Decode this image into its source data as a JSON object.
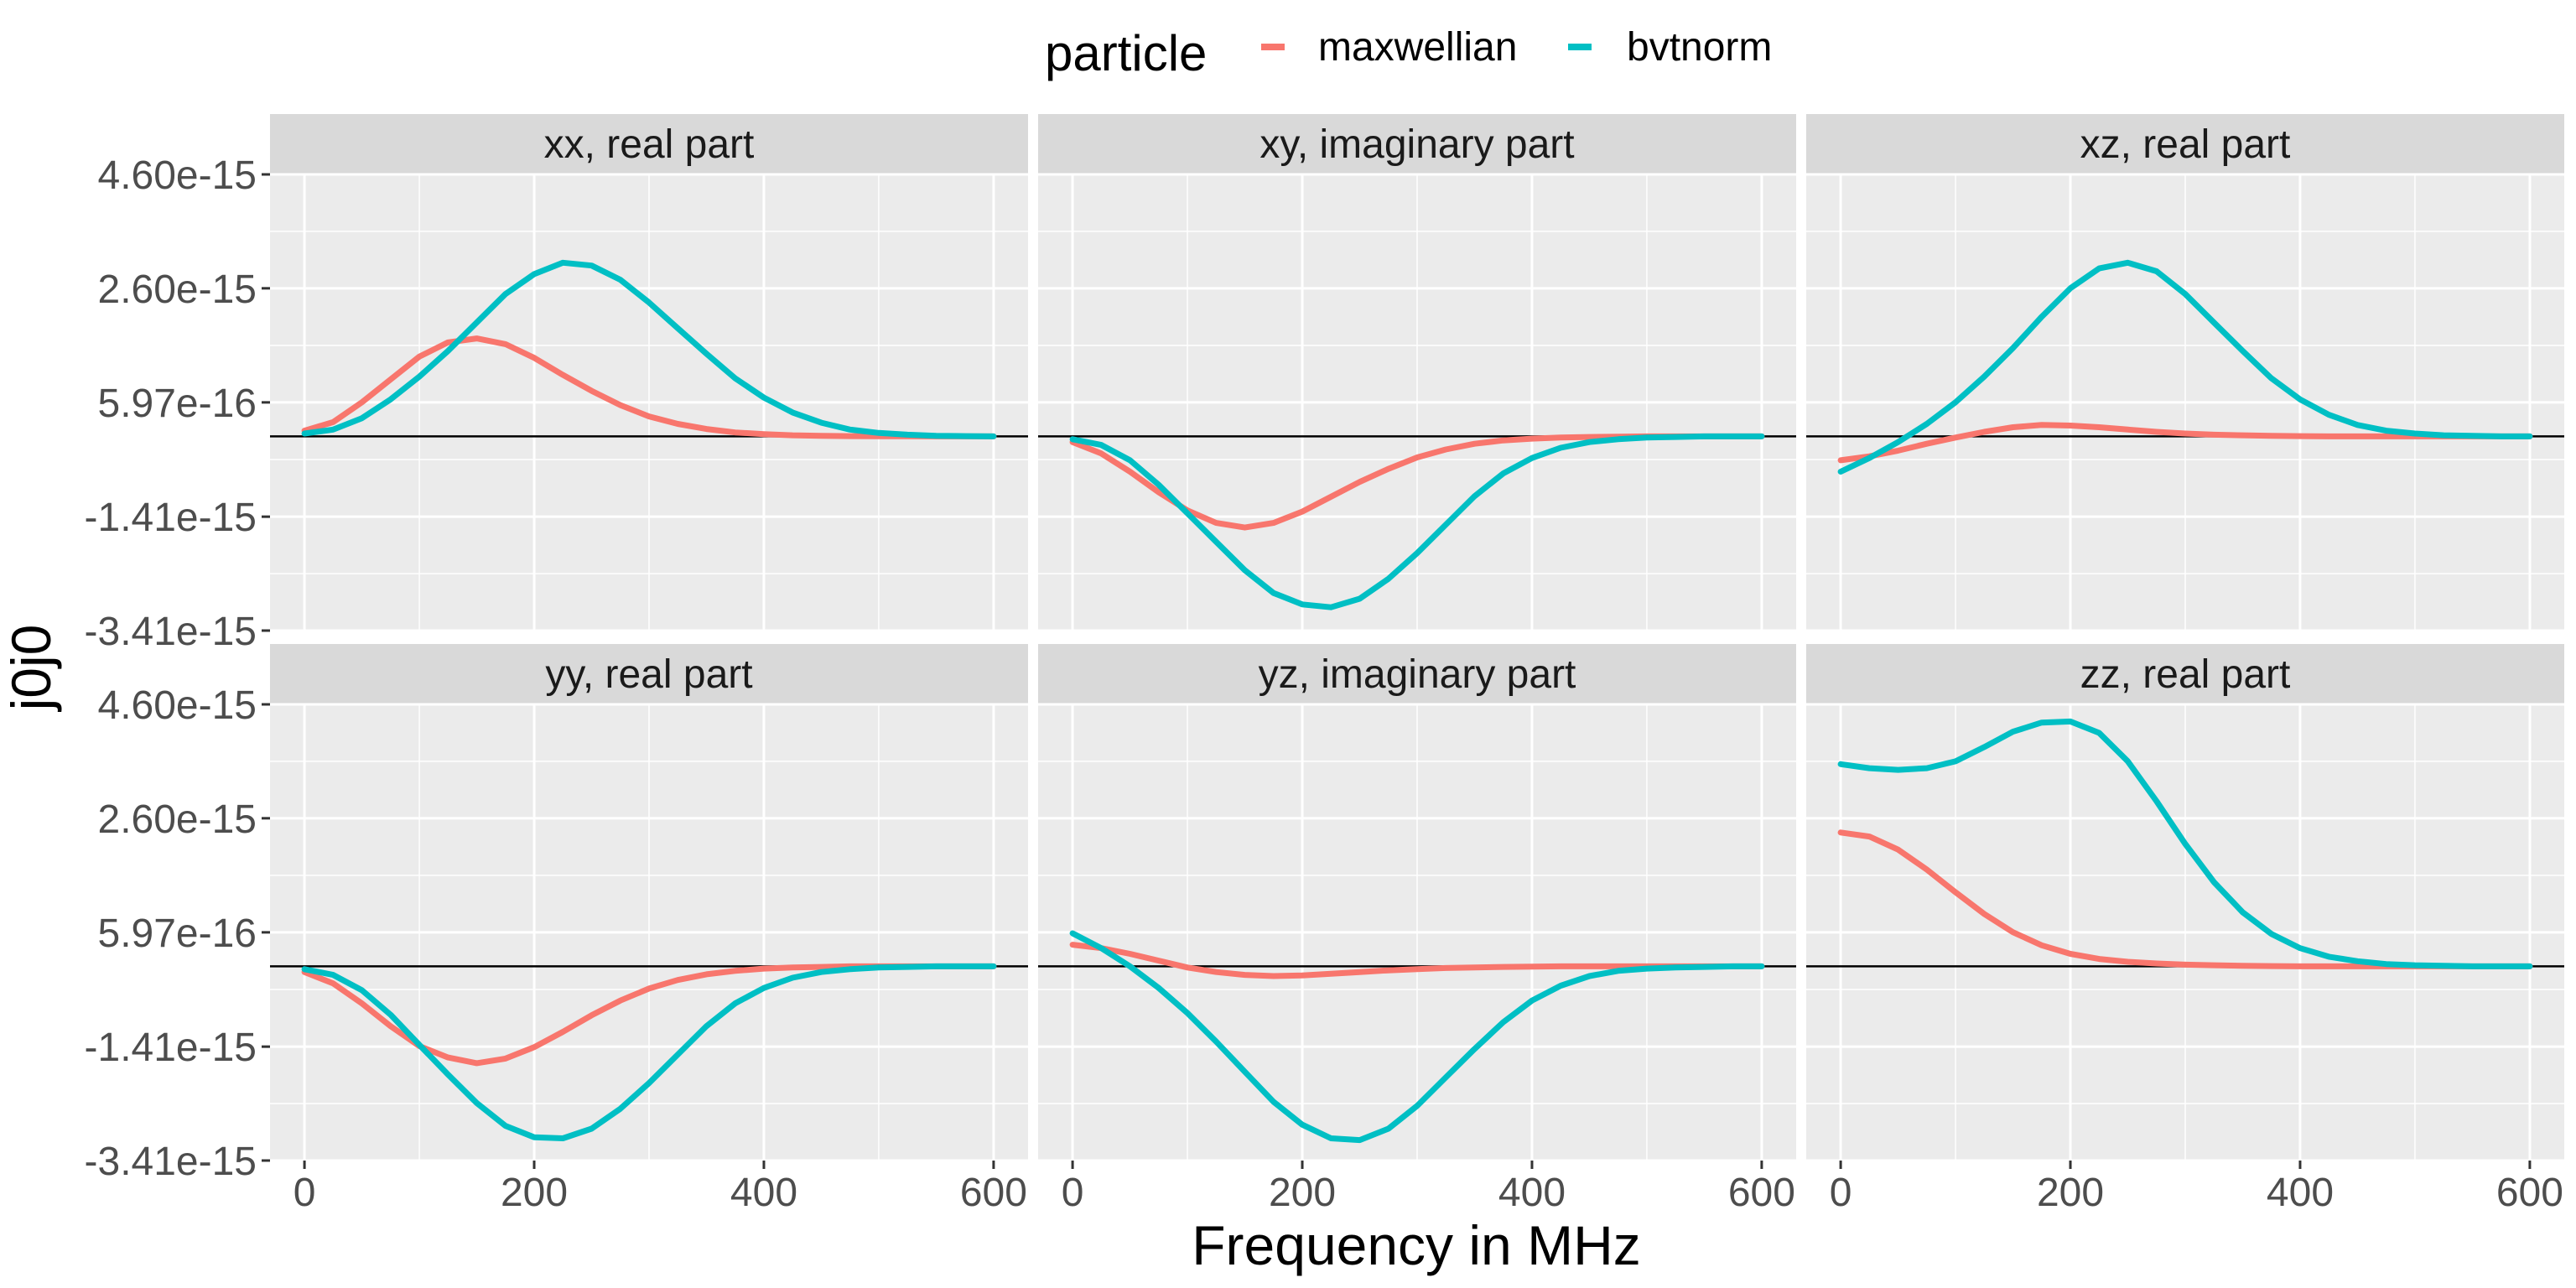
{
  "chart_data": {
    "type": "line",
    "xlabel": "Frequency in MHz",
    "ylabel": "j0j0",
    "legend": {
      "title": "particle",
      "position": "top"
    },
    "x_ticks": [
      0,
      200,
      400,
      600
    ],
    "y_ticks": [
      "4.60e-15",
      "2.60e-15",
      "5.97e-16",
      "-1.41e-15",
      "-3.41e-15"
    ],
    "xlim": [
      -30,
      630
    ],
    "ylim": [
      -3.41e-15,
      4.6e-15
    ],
    "grid": true,
    "series_styles": [
      {
        "name": "maxwellian",
        "color": "#F8766D"
      },
      {
        "name": "bvtnorm",
        "color": "#00BFC4"
      }
    ],
    "x": [
      0,
      25,
      50,
      75,
      100,
      125,
      150,
      175,
      200,
      225,
      250,
      275,
      300,
      325,
      350,
      375,
      400,
      425,
      450,
      475,
      500,
      525,
      550,
      575,
      600
    ],
    "panels": [
      {
        "label": "xx, real part",
        "series": [
          {
            "name": "maxwellian",
            "values": [
              1e-16,
              2.5e-16,
              6e-16,
              1e-15,
              1.4e-15,
              1.65e-15,
              1.72e-15,
              1.62e-15,
              1.38e-15,
              1.08e-15,
              8e-16,
              5.5e-16,
              3.5e-16,
              2.2e-16,
              1.3e-16,
              7e-17,
              4e-17,
              2e-17,
              1e-17,
              5e-18,
              3e-18,
              1e-18,
              0,
              0,
              0
            ]
          },
          {
            "name": "bvtnorm",
            "values": [
              5e-17,
              1.2e-16,
              3.2e-16,
              6.5e-16,
              1.05e-15,
              1.5e-15,
              2e-15,
              2.5e-15,
              2.85e-15,
              3.05e-15,
              3e-15,
              2.75e-15,
              2.35e-15,
              1.9e-15,
              1.45e-15,
              1.02e-15,
              6.8e-16,
              4.2e-16,
              2.4e-16,
              1.2e-16,
              6e-17,
              3e-17,
              1e-17,
              5e-18,
              0
            ]
          }
        ]
      },
      {
        "label": "xy, imaginary part",
        "series": [
          {
            "name": "maxwellian",
            "values": [
              -1e-16,
              -3e-16,
              -6.2e-16,
              -9.8e-16,
              -1.3e-15,
              -1.52e-15,
              -1.6e-15,
              -1.52e-15,
              -1.32e-15,
              -1.06e-15,
              -8e-16,
              -5.7e-16,
              -3.7e-16,
              -2.3e-16,
              -1.3e-16,
              -7e-17,
              -4e-17,
              -2e-17,
              -1e-17,
              -5e-18,
              0,
              0,
              0,
              0,
              0
            ]
          },
          {
            "name": "bvtnorm",
            "values": [
              -5e-17,
              -1.5e-16,
              -4.2e-16,
              -8.5e-16,
              -1.35e-15,
              -1.85e-15,
              -2.35e-15,
              -2.75e-15,
              -2.95e-15,
              -3e-15,
              -2.85e-15,
              -2.5e-15,
              -2.05e-15,
              -1.55e-15,
              -1.05e-15,
              -6.5e-16,
              -3.8e-16,
              -2e-16,
              -1e-16,
              -5e-17,
              -2e-17,
              -1e-17,
              0,
              0,
              0
            ]
          }
        ]
      },
      {
        "label": "xz, real part",
        "series": [
          {
            "name": "maxwellian",
            "values": [
              -4.2e-16,
              -3.5e-16,
              -2.5e-16,
              -1.3e-16,
              -2e-17,
              8e-17,
              1.6e-16,
              2e-16,
              1.9e-16,
              1.6e-16,
              1.2e-16,
              8e-17,
              5e-17,
              3e-17,
              2e-17,
              1e-17,
              5e-18,
              0,
              0,
              0,
              0,
              0,
              0,
              0,
              0
            ]
          },
          {
            "name": "bvtnorm",
            "values": [
              -6.2e-16,
              -3.8e-16,
              -1e-16,
              2.2e-16,
              6e-16,
              1.05e-15,
              1.55e-15,
              2.1e-15,
              2.6e-15,
              2.95e-15,
              3.05e-15,
              2.9e-15,
              2.5e-15,
              2e-15,
              1.5e-15,
              1.02e-15,
              6.5e-16,
              3.8e-16,
              2e-16,
              1e-16,
              5e-17,
              2e-17,
              1e-17,
              0,
              0
            ]
          }
        ]
      },
      {
        "label": "yy, real part",
        "series": [
          {
            "name": "maxwellian",
            "values": [
              -1e-16,
              -3e-16,
              -6.5e-16,
              -1.05e-15,
              -1.4e-15,
              -1.6e-15,
              -1.7e-15,
              -1.62e-15,
              -1.42e-15,
              -1.15e-15,
              -8.6e-16,
              -6e-16,
              -3.9e-16,
              -2.4e-16,
              -1.4e-16,
              -8e-17,
              -4e-17,
              -2e-17,
              -1e-17,
              0,
              0,
              0,
              0,
              0,
              0
            ]
          },
          {
            "name": "bvtnorm",
            "values": [
              -5e-17,
              -1.5e-16,
              -4.2e-16,
              -8.5e-16,
              -1.38e-15,
              -1.9e-15,
              -2.4e-15,
              -2.8e-15,
              -3e-15,
              -3.02e-15,
              -2.85e-15,
              -2.5e-15,
              -2.05e-15,
              -1.55e-15,
              -1.05e-15,
              -6.5e-16,
              -3.8e-16,
              -2e-16,
              -1e-16,
              -5e-17,
              -2e-17,
              -1e-17,
              0,
              0,
              0
            ]
          }
        ]
      },
      {
        "label": "yz, imaginary part",
        "series": [
          {
            "name": "maxwellian",
            "values": [
              3.8e-16,
              3.2e-16,
              2.2e-16,
              1e-16,
              -2e-17,
              -1e-16,
              -1.5e-16,
              -1.7e-16,
              -1.6e-16,
              -1.3e-16,
              -1e-16,
              -7e-17,
              -5e-17,
              -3e-17,
              -2e-17,
              -1e-17,
              -5e-18,
              0,
              0,
              0,
              0,
              0,
              0,
              0,
              0
            ]
          },
          {
            "name": "bvtnorm",
            "values": [
              5.8e-16,
              3.2e-16,
              0.0,
              -3.8e-16,
              -8.2e-16,
              -1.32e-15,
              -1.85e-15,
              -2.38e-15,
              -2.78e-15,
              -3.02e-15,
              -3.05e-15,
              -2.85e-15,
              -2.45e-15,
              -1.95e-15,
              -1.45e-15,
              -9.8e-16,
              -6e-16,
              -3.4e-16,
              -1.7e-16,
              -8e-17,
              -4e-17,
              -2e-17,
              -1e-17,
              0,
              0
            ]
          }
        ]
      },
      {
        "label": "zz, real part",
        "series": [
          {
            "name": "maxwellian",
            "values": [
              2.35e-15,
              2.28e-15,
              2.05e-15,
              1.7e-15,
              1.3e-15,
              9.2e-16,
              6e-16,
              3.7e-16,
              2.2e-16,
              1.3e-16,
              8e-17,
              5e-17,
              3e-17,
              2e-17,
              1e-17,
              5e-18,
              0,
              0,
              0,
              0,
              0,
              0,
              0,
              0,
              0
            ]
          },
          {
            "name": "bvtnorm",
            "values": [
              3.55e-15,
              3.48e-15,
              3.45e-15,
              3.48e-15,
              3.6e-15,
              3.85e-15,
              4.12e-15,
              4.28e-15,
              4.3e-15,
              4.1e-15,
              3.6e-15,
              2.9e-15,
              2.15e-15,
              1.48e-15,
              9.5e-16,
              5.7e-16,
              3.2e-16,
              1.7e-16,
              9e-17,
              4e-17,
              2e-17,
              1e-17,
              0,
              0,
              0
            ]
          }
        ]
      }
    ]
  }
}
